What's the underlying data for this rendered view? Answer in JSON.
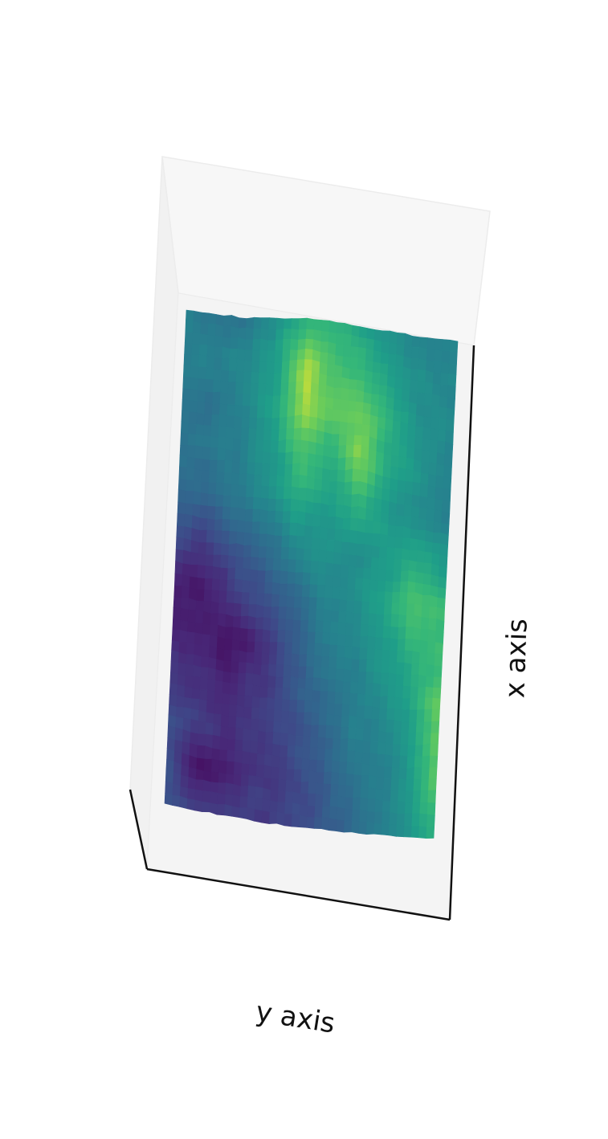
{
  "chart_data": {
    "type": "surface3d",
    "colormap": "viridis",
    "xlabel": "x axis",
    "ylabel": "y axis",
    "zlabel": "",
    "grid": false,
    "ticks": false,
    "legend": "none",
    "grid_rows": 12,
    "grid_cols": 10,
    "z_normalized": [
      [
        0.5,
        0.45,
        0.42,
        0.58,
        0.7,
        0.72,
        0.62,
        0.55,
        0.48,
        0.52
      ],
      [
        0.48,
        0.5,
        0.55,
        0.6,
        0.92,
        0.8,
        0.75,
        0.6,
        0.55,
        0.5
      ],
      [
        0.45,
        0.42,
        0.5,
        0.65,
        0.95,
        0.85,
        0.88,
        0.7,
        0.55,
        0.52
      ],
      [
        0.42,
        0.45,
        0.48,
        0.6,
        0.8,
        0.7,
        0.92,
        0.65,
        0.58,
        0.5
      ],
      [
        0.38,
        0.4,
        0.45,
        0.55,
        0.68,
        0.62,
        0.7,
        0.6,
        0.55,
        0.48
      ],
      [
        0.25,
        0.18,
        0.32,
        0.4,
        0.52,
        0.58,
        0.55,
        0.62,
        0.68,
        0.6
      ],
      [
        0.1,
        0.08,
        0.2,
        0.3,
        0.38,
        0.5,
        0.55,
        0.65,
        0.82,
        0.75
      ],
      [
        0.12,
        0.1,
        0.05,
        0.15,
        0.32,
        0.45,
        0.52,
        0.6,
        0.7,
        0.78
      ],
      [
        0.2,
        0.15,
        0.12,
        0.18,
        0.28,
        0.4,
        0.48,
        0.55,
        0.65,
        0.85
      ],
      [
        0.25,
        0.2,
        0.15,
        0.2,
        0.25,
        0.35,
        0.45,
        0.5,
        0.6,
        0.88
      ],
      [
        0.28,
        0.05,
        0.1,
        0.18,
        0.22,
        0.3,
        0.4,
        0.48,
        0.58,
        0.8
      ],
      [
        0.3,
        0.25,
        0.2,
        0.2,
        0.22,
        0.28,
        0.38,
        0.45,
        0.55,
        0.7
      ]
    ]
  }
}
